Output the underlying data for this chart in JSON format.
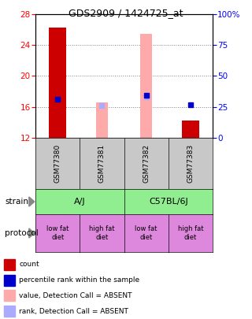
{
  "title": "GDS2909 / 1424725_at",
  "ylim_left": [
    12,
    28
  ],
  "ylim_right": [
    0,
    100
  ],
  "yticks_left": [
    12,
    16,
    20,
    24,
    28
  ],
  "yticks_right": [
    0,
    25,
    50,
    75,
    100
  ],
  "ytick_labels_right": [
    "0",
    "25",
    "50",
    "75",
    "100%"
  ],
  "samples": [
    "GSM77380",
    "GSM77381",
    "GSM77382",
    "GSM77383"
  ],
  "red_bar_bottoms": [
    12,
    null,
    null,
    12
  ],
  "red_bar_tops": [
    26.3,
    null,
    null,
    14.2
  ],
  "blue_sq_values": [
    17.0,
    null,
    17.5,
    16.3
  ],
  "pink_bar_bottoms": [
    null,
    12,
    12,
    null
  ],
  "pink_bar_tops": [
    null,
    16.6,
    25.5,
    null
  ],
  "lightblue_sq_values": [
    null,
    16.15,
    17.3,
    null
  ],
  "strain_groups": [
    [
      "A/J",
      0,
      1
    ],
    [
      "C57BL/6J",
      2,
      3
    ]
  ],
  "protocol_labels": [
    "low fat\ndiet",
    "high fat\ndiet",
    "low fat\ndiet",
    "high fat\ndiet"
  ],
  "protocol_color": "#dd88dd",
  "strain_color": "#90ee90",
  "sample_bg_color": "#c8c8c8",
  "red_bar_color": "#cc0000",
  "pink_bar_color": "#ffaaaa",
  "blue_sq_color": "#0000cc",
  "lightblue_sq_color": "#aaaaff",
  "legend_items": [
    {
      "label": "count",
      "color": "#cc0000"
    },
    {
      "label": "percentile rank within the sample",
      "color": "#0000cc"
    },
    {
      "label": "value, Detection Call = ABSENT",
      "color": "#ffaaaa"
    },
    {
      "label": "rank, Detection Call = ABSENT",
      "color": "#aaaaff"
    }
  ]
}
